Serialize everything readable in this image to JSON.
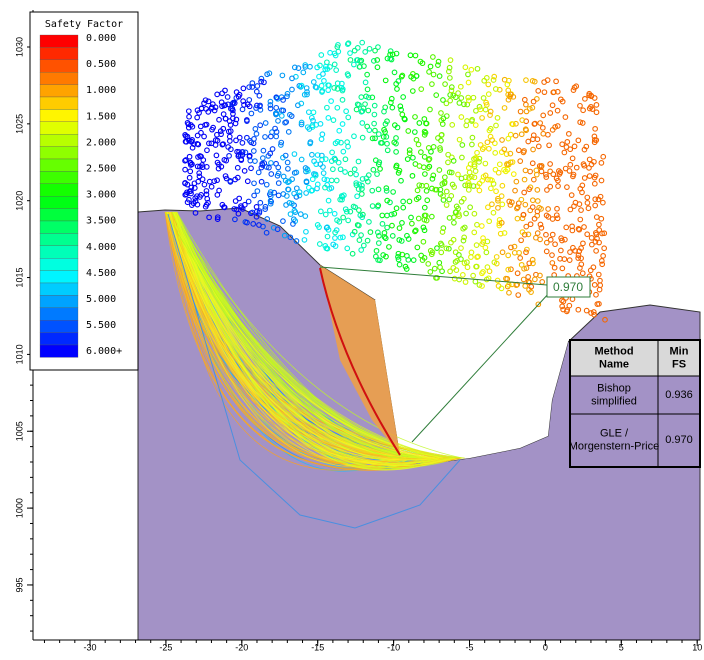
{
  "legend": {
    "title": "Safety Factor",
    "labels": [
      "0.000",
      "0.500",
      "1.000",
      "1.500",
      "2.000",
      "2.500",
      "3.000",
      "3.500",
      "4.000",
      "4.500",
      "5.000",
      "5.500",
      "6.000+"
    ]
  },
  "x_axis": {
    "ticks": [
      -30,
      -25,
      -20,
      -15,
      -10,
      -5,
      0,
      5,
      10
    ]
  },
  "y_axis": {
    "ticks": [
      995,
      1000,
      1005,
      1010,
      1015,
      1020,
      1025,
      1030
    ]
  },
  "callout": "0.970",
  "table": {
    "header": [
      "Method Name",
      "Min FS"
    ],
    "rows": [
      [
        "Bishop simplified",
        "0.936"
      ],
      [
        "GLE / Morgenstern-Price",
        "0.970"
      ]
    ]
  }
}
